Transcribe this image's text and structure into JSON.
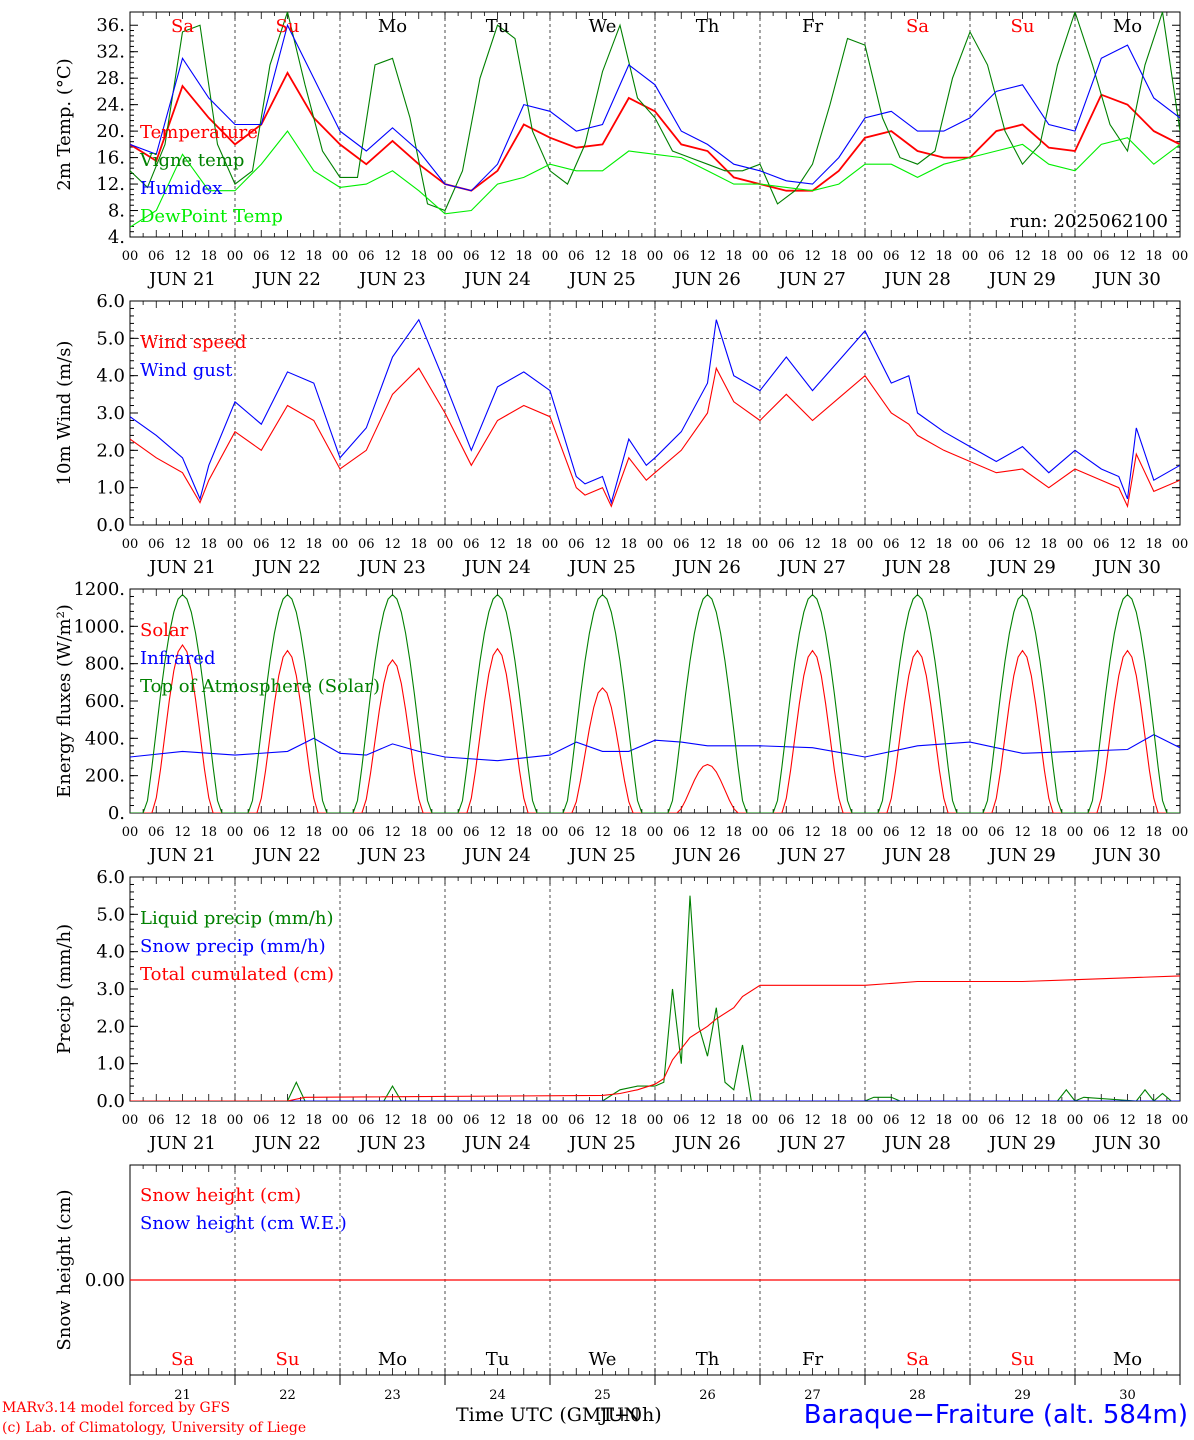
{
  "chart_data": [
    {
      "type": "line",
      "ylabel": "2m Temp. (°C)",
      "ylim": [
        4,
        38
      ],
      "yticks": [
        "4.",
        "8.",
        "12.",
        "16.",
        "20.",
        "24.",
        "28.",
        "32.",
        "36."
      ],
      "annotation": "run: 2025062100",
      "day_labels": [
        "Sa",
        "Su",
        "Mo",
        "Tu",
        "We",
        "Th",
        "Fr",
        "Sa",
        "Su",
        "Mo"
      ],
      "weekend_flags": [
        true,
        true,
        false,
        false,
        false,
        false,
        false,
        true,
        true,
        false
      ],
      "series": [
        {
          "name": "Temperature",
          "color": "#ff0000",
          "x": [
            0,
            6,
            12,
            18,
            24,
            30,
            36,
            42,
            48,
            54,
            60,
            66,
            72,
            78,
            84,
            90,
            96,
            102,
            108,
            114,
            120,
            126,
            132,
            138,
            144,
            150,
            156,
            162,
            168,
            174,
            180,
            186,
            192,
            198,
            204,
            210,
            216,
            222,
            228,
            234,
            240
          ],
          "values": [
            18,
            15.5,
            26.8,
            22,
            18,
            21,
            28.8,
            22,
            18,
            15,
            18.5,
            15,
            12,
            11,
            14,
            21,
            19,
            17.5,
            18,
            25,
            23,
            18,
            17,
            13,
            12,
            11,
            11,
            14,
            19,
            20,
            17,
            16,
            16,
            20,
            21,
            17.5,
            17,
            25.5,
            24,
            20,
            18
          ]
        },
        {
          "name": "Vigne temp",
          "color": "#008000",
          "x": [
            0,
            4,
            8,
            12,
            16,
            20,
            24,
            28,
            32,
            36,
            40,
            44,
            48,
            52,
            56,
            60,
            64,
            68,
            72,
            76,
            80,
            84,
            88,
            92,
            96,
            100,
            104,
            108,
            112,
            116,
            120,
            124,
            128,
            132,
            136,
            140,
            144,
            148,
            152,
            156,
            160,
            164,
            168,
            172,
            176,
            180,
            184,
            188,
            192,
            196,
            200,
            204,
            208,
            212,
            216,
            220,
            224,
            228,
            232,
            236,
            240
          ],
          "values": [
            14,
            11.5,
            18,
            35,
            36,
            18,
            12,
            14,
            30,
            38,
            27,
            17,
            13,
            13,
            30,
            31,
            22,
            9,
            8,
            14,
            28,
            36,
            34,
            20,
            14,
            12,
            18,
            29,
            36,
            25,
            22,
            17,
            16,
            15,
            14,
            14,
            15,
            9,
            11,
            15,
            24,
            34,
            33,
            22,
            16,
            15,
            17,
            28,
            35,
            30,
            20,
            15,
            18,
            30,
            38,
            30,
            21,
            17,
            30,
            38,
            20
          ]
        },
        {
          "name": "Humidex",
          "color": "#0000ff",
          "x": [
            0,
            6,
            12,
            18,
            24,
            30,
            36,
            42,
            48,
            54,
            60,
            66,
            72,
            78,
            84,
            90,
            96,
            102,
            108,
            114,
            120,
            126,
            132,
            138,
            144,
            150,
            156,
            162,
            168,
            174,
            180,
            186,
            192,
            198,
            204,
            210,
            216,
            222,
            228,
            234,
            240
          ],
          "values": [
            18,
            16.5,
            31,
            25,
            21,
            21,
            36,
            28,
            20,
            17,
            20.5,
            17,
            12,
            11,
            15,
            24,
            23,
            20,
            21,
            30,
            27,
            20,
            18,
            15,
            14,
            12.5,
            12,
            16,
            22,
            23,
            20,
            20,
            22,
            26,
            27,
            21,
            20,
            31,
            33,
            25,
            22
          ]
        },
        {
          "name": "DewPoint Temp",
          "color": "#00ee00",
          "x": [
            0,
            6,
            12,
            18,
            24,
            30,
            36,
            42,
            48,
            54,
            60,
            66,
            72,
            78,
            84,
            90,
            96,
            102,
            108,
            114,
            120,
            126,
            132,
            138,
            144,
            150,
            156,
            162,
            168,
            174,
            180,
            186,
            192,
            198,
            204,
            210,
            216,
            222,
            228,
            234,
            240
          ],
          "values": [
            5.5,
            8,
            16.5,
            11,
            11,
            15,
            20,
            14,
            11.5,
            12,
            14,
            11,
            7.5,
            8,
            12,
            13,
            15,
            14,
            14,
            17,
            16.5,
            16,
            14,
            12,
            12,
            11.5,
            11,
            12,
            15,
            15,
            13,
            15,
            16,
            17,
            18,
            15,
            14,
            18,
            19,
            15,
            18
          ]
        }
      ]
    },
    {
      "type": "line",
      "ylabel": "10m Wind (m/s)",
      "ylim": [
        0,
        6
      ],
      "yticks": [
        "0.0",
        "1.0",
        "2.0",
        "3.0",
        "4.0",
        "5.0",
        "6.0"
      ],
      "reference_line": 5.0,
      "series": [
        {
          "name": "Wind speed",
          "color": "#ff0000",
          "x": [
            0,
            6,
            12,
            16,
            18,
            24,
            30,
            36,
            42,
            48,
            54,
            60,
            66,
            72,
            78,
            84,
            90,
            96,
            102,
            104,
            108,
            110,
            114,
            118,
            120,
            126,
            132,
            134,
            138,
            144,
            150,
            156,
            162,
            168,
            174,
            178,
            180,
            186,
            192,
            198,
            204,
            210,
            216,
            222,
            226,
            228,
            230,
            234,
            240
          ],
          "values": [
            2.3,
            1.8,
            1.4,
            0.6,
            1.2,
            2.5,
            2.0,
            3.2,
            2.8,
            1.5,
            2.0,
            3.5,
            4.2,
            3.0,
            1.6,
            2.8,
            3.2,
            2.9,
            1.0,
            0.8,
            1.0,
            0.5,
            1.8,
            1.2,
            1.4,
            2.0,
            3.0,
            4.2,
            3.3,
            2.8,
            3.5,
            2.8,
            3.4,
            4.0,
            3.0,
            2.7,
            2.4,
            2.0,
            1.7,
            1.4,
            1.5,
            1.0,
            1.5,
            1.2,
            1.0,
            0.5,
            1.9,
            0.9,
            1.2
          ]
        },
        {
          "name": "Wind gust",
          "color": "#0000ff",
          "x": [
            0,
            6,
            12,
            16,
            18,
            24,
            30,
            36,
            42,
            48,
            54,
            60,
            66,
            72,
            78,
            84,
            90,
            96,
            102,
            104,
            108,
            110,
            114,
            118,
            120,
            126,
            132,
            134,
            138,
            144,
            150,
            156,
            162,
            168,
            174,
            178,
            180,
            186,
            192,
            198,
            204,
            210,
            216,
            222,
            226,
            228,
            230,
            234,
            240
          ],
          "values": [
            2.9,
            2.4,
            1.8,
            0.7,
            1.6,
            3.3,
            2.7,
            4.1,
            3.8,
            1.8,
            2.6,
            4.5,
            5.5,
            3.8,
            2.0,
            3.7,
            4.1,
            3.6,
            1.3,
            1.1,
            1.3,
            0.6,
            2.3,
            1.6,
            1.8,
            2.5,
            3.8,
            5.5,
            4.0,
            3.6,
            4.5,
            3.6,
            4.4,
            5.2,
            3.8,
            4.0,
            3.0,
            2.5,
            2.1,
            1.7,
            2.1,
            1.4,
            2.0,
            1.5,
            1.3,
            0.7,
            2.6,
            1.2,
            1.6
          ]
        }
      ]
    },
    {
      "type": "line",
      "ylabel": "Energy fluxes (W/m²)",
      "ylim": [
        0,
        1200
      ],
      "yticks": [
        "0.",
        "200.",
        "400.",
        "600.",
        "800.",
        "1000.",
        "1200."
      ],
      "series": [
        {
          "name": "Solar",
          "color": "#ff0000",
          "daily_peak": [
            900,
            870,
            820,
            880,
            670,
            260,
            870,
            870,
            870,
            870
          ]
        },
        {
          "name": "Infrared",
          "color": "#0000ff",
          "x": [
            0,
            12,
            24,
            36,
            42,
            48,
            54,
            60,
            66,
            72,
            84,
            96,
            102,
            108,
            114,
            120,
            126,
            132,
            144,
            156,
            168,
            180,
            192,
            204,
            216,
            228,
            234,
            240
          ],
          "values": [
            300,
            330,
            310,
            330,
            400,
            320,
            310,
            370,
            330,
            300,
            280,
            310,
            380,
            330,
            330,
            390,
            380,
            360,
            360,
            350,
            300,
            360,
            380,
            320,
            330,
            340,
            420,
            350
          ]
        },
        {
          "name": "Top of Atmosphere (Solar)",
          "color": "#008000",
          "daily_peak": [
            1170,
            1170,
            1170,
            1170,
            1170,
            1170,
            1170,
            1170,
            1170,
            1170
          ]
        }
      ]
    },
    {
      "type": "line",
      "ylabel": "Precip (mm/h)",
      "ylim": [
        0,
        6
      ],
      "yticks": [
        "0.0",
        "1.0",
        "2.0",
        "3.0",
        "4.0",
        "5.0",
        "6.0"
      ],
      "series": [
        {
          "name": "Liquid precip (mm/h)",
          "color": "#008000",
          "x": [
            0,
            36,
            38,
            40,
            42,
            48,
            58,
            60,
            62,
            64,
            66,
            108,
            112,
            116,
            120,
            122,
            124,
            126,
            128,
            130,
            132,
            134,
            136,
            138,
            140,
            142,
            144,
            146,
            168,
            170,
            172,
            174,
            176,
            192,
            212,
            214,
            216,
            218,
            230,
            232,
            234,
            236,
            238,
            240
          ],
          "values": [
            0,
            0,
            0.5,
            0,
            0,
            0,
            0,
            0.4,
            0,
            0,
            0,
            0,
            0.3,
            0.4,
            0.4,
            0.5,
            3.0,
            1.0,
            5.5,
            2.0,
            1.2,
            2.5,
            0.5,
            0.3,
            1.5,
            0,
            0,
            0,
            0,
            0.1,
            0.1,
            0.1,
            0,
            0,
            0,
            0.3,
            0,
            0.1,
            0,
            0.3,
            0,
            0.2,
            0,
            0
          ]
        },
        {
          "name": "Snow precip (mm/h)",
          "color": "#0000ff",
          "x": [
            0,
            240
          ],
          "values": [
            0,
            0
          ]
        },
        {
          "name": "Total cumulated (cm)",
          "color": "#ff0000",
          "x": [
            0,
            36,
            40,
            108,
            112,
            116,
            120,
            122,
            124,
            126,
            128,
            132,
            134,
            138,
            140,
            144,
            168,
            174,
            180,
            192,
            204,
            216,
            228,
            240
          ],
          "values": [
            0,
            0,
            0.1,
            0.15,
            0.2,
            0.3,
            0.45,
            0.6,
            1.1,
            1.4,
            1.7,
            2.0,
            2.2,
            2.5,
            2.8,
            3.1,
            3.1,
            3.15,
            3.2,
            3.2,
            3.2,
            3.25,
            3.3,
            3.35
          ]
        }
      ]
    },
    {
      "type": "line",
      "ylabel": "Snow height (cm)",
      "yticks": [
        "0.00"
      ],
      "series": [
        {
          "name": "Snow height (cm)",
          "color": "#ff0000",
          "x": [
            0,
            240
          ],
          "values": [
            0,
            0
          ]
        },
        {
          "name": "Snow height (cm W.E.)",
          "color": "#0000ff",
          "x": [
            0,
            240
          ],
          "values": [
            0,
            0
          ]
        }
      ]
    }
  ],
  "x_axis": {
    "hour_ticks": [
      "00",
      "06",
      "12",
      "18"
    ],
    "end_tick": "00",
    "date_labels": [
      "JUN 21",
      "JUN 22",
      "JUN 23",
      "JUN 24",
      "JUN 25",
      "JUN 26",
      "JUN 27",
      "JUN 28",
      "JUN 29",
      "JUN 30"
    ],
    "day_numbers": [
      "21",
      "22",
      "23",
      "24",
      "25",
      "26",
      "27",
      "28",
      "29",
      "30"
    ]
  },
  "colors": {
    "weekend": "#ff0000",
    "weekday": "#000000",
    "accent_blue": "#0000ff"
  },
  "footer": {
    "model_line": "MARv3.14 model forced by GFS",
    "copyright_line": "(c) Lab. of Climatology, University of Liege",
    "time_label": "Time UTC (GMT+0h)",
    "time_label_overlay": "JUN",
    "station": "Baraque−Fraiture (alt. 584m)"
  }
}
